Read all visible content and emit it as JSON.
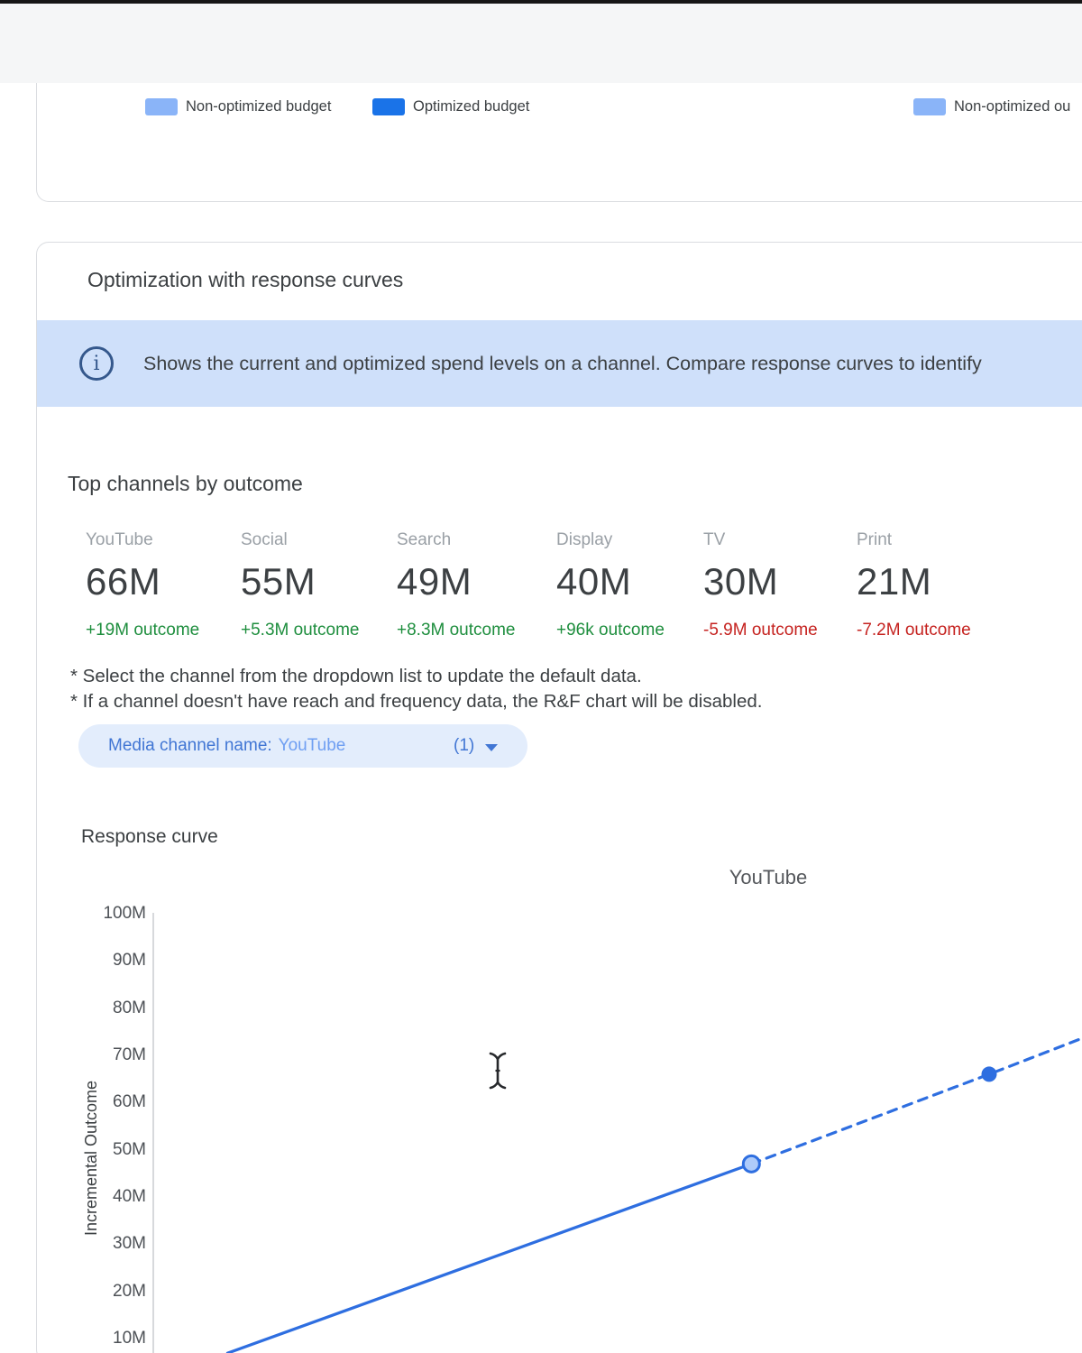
{
  "legend_top": {
    "items": [
      {
        "label": "Non-optimized budget",
        "color": "#8ab4f8"
      },
      {
        "label": "Optimized budget",
        "color": "#1a73e8"
      },
      {
        "label": "Non-optimized ou",
        "color": "#8ab4f8"
      }
    ]
  },
  "card": {
    "title": "Optimization with response curves",
    "banner": {
      "icon": "info-icon",
      "text": "Shows the current and optimized spend levels on a channel. Compare response curves to identify"
    },
    "top_channels": {
      "heading": "Top channels by outcome",
      "channels": [
        {
          "name": "YouTube",
          "value": "66M",
          "outcome": "+19M outcome"
        },
        {
          "name": "Social",
          "value": "55M",
          "outcome": "+5.3M outcome"
        },
        {
          "name": "Search",
          "value": "49M",
          "outcome": "+8.3M outcome"
        },
        {
          "name": "Display",
          "value": "40M",
          "outcome": "+96k outcome"
        },
        {
          "name": "TV",
          "value": "30M",
          "outcome": "-5.9M outcome"
        },
        {
          "name": "Print",
          "value": "21M",
          "outcome": "-7.2M outcome"
        }
      ]
    },
    "notes": [
      "* Select the channel from the dropdown list to update the default data.",
      "* If a channel doesn't have reach and frequency data, the R&F chart will be disabled."
    ],
    "channel_filter": {
      "label": "Media channel name:",
      "value": "YouTube",
      "count": "(1)"
    },
    "response_curve": {
      "heading": "Response curve",
      "chart_title": "YouTube",
      "ylabel": "Incremental Outcome",
      "yticks": [
        "100M",
        "90M",
        "80M",
        "70M",
        "60M",
        "50M",
        "40M",
        "30M",
        "20M",
        "10M"
      ]
    }
  },
  "chart_data": {
    "type": "line",
    "title": "YouTube",
    "ylabel": "Incremental Outcome",
    "ylim_millions": [
      0,
      100
    ],
    "yticks_millions": [
      100,
      90,
      80,
      70,
      60,
      50,
      40,
      30,
      20,
      10
    ],
    "line_color": "#2e6ee0",
    "marker_hollow_fill": "#aecbfa",
    "series": [
      {
        "name": "current-spend",
        "style": "solid",
        "points": [
          {
            "xf": 0.08,
            "y": 6.9
          },
          {
            "xf": 0.644,
            "y": 47
          }
        ]
      },
      {
        "name": "optimized-projection",
        "style": "dashed",
        "points": [
          {
            "xf": 0.644,
            "y": 47
          },
          {
            "xf": 0.9,
            "y": 66
          },
          {
            "xf": 1.0,
            "y": 73.6
          }
        ]
      }
    ],
    "markers": [
      {
        "name": "current-spend-point",
        "kind": "hollow",
        "xf": 0.644,
        "y": 47
      },
      {
        "name": "optimized-spend-point",
        "kind": "solid",
        "xf": 0.9,
        "y": 66
      }
    ]
  }
}
